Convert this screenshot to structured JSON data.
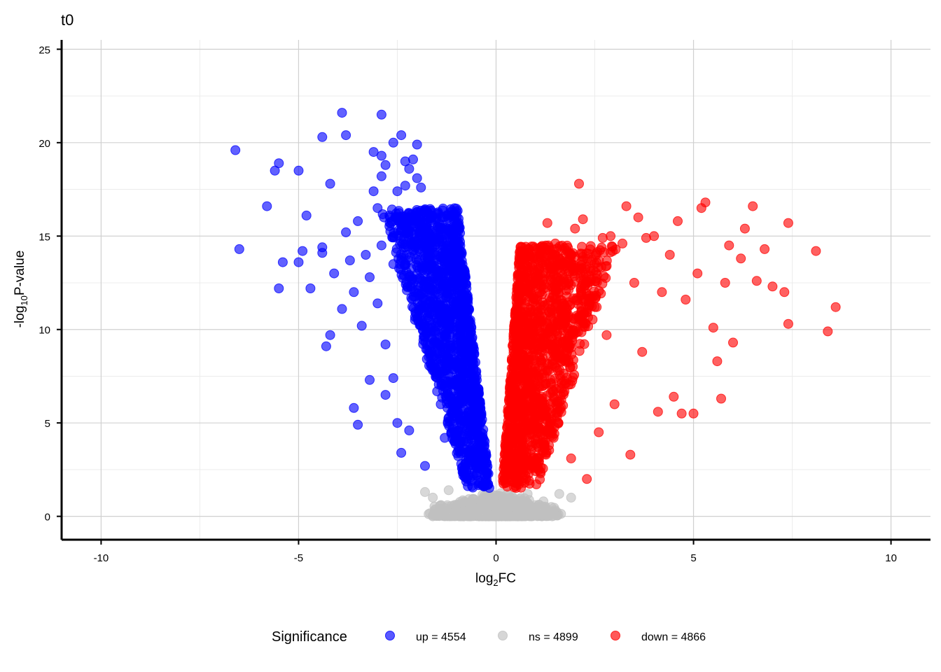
{
  "chart_data": {
    "type": "scatter",
    "title": "t0",
    "xlabel": "log",
    "xlabel_sub": "2",
    "xlabel_tail": "FC",
    "ylabel": "-log",
    "ylabel_sub": "10",
    "ylabel_tail": "P-value",
    "xlim": [
      -11,
      11
    ],
    "ylim": [
      -1.25,
      25.5
    ],
    "x_ticks": [
      -10,
      -5,
      0,
      5,
      10
    ],
    "x_tick_labels": [
      "-10",
      "-5",
      "0",
      "5",
      "10"
    ],
    "y_ticks": [
      0,
      5,
      10,
      15,
      20,
      25
    ],
    "y_tick_labels": [
      "0",
      "5",
      "10",
      "15",
      "20",
      "25"
    ],
    "grid": true,
    "legend_position": "bottom",
    "legend_title": "Significance",
    "series": [
      {
        "name": "up = 4554",
        "color": "#0000ff",
        "points": [
          [
            -6.6,
            19.6
          ],
          [
            -6.5,
            14.3
          ],
          [
            -5.8,
            16.6
          ],
          [
            -5.6,
            18.5
          ],
          [
            -5.5,
            18.9
          ],
          [
            -5.5,
            12.2
          ],
          [
            -5.4,
            13.6
          ],
          [
            -5.0,
            18.5
          ],
          [
            -5.0,
            13.6
          ],
          [
            -4.9,
            14.2
          ],
          [
            -4.8,
            16.1
          ],
          [
            -4.7,
            12.2
          ],
          [
            -4.4,
            20.3
          ],
          [
            -4.4,
            14.4
          ],
          [
            -4.4,
            14.1
          ],
          [
            -4.3,
            9.1
          ],
          [
            -4.2,
            17.8
          ],
          [
            -4.2,
            9.7
          ],
          [
            -4.1,
            13.0
          ],
          [
            -3.9,
            21.6
          ],
          [
            -3.9,
            11.1
          ],
          [
            -3.8,
            20.4
          ],
          [
            -3.8,
            15.2
          ],
          [
            -3.7,
            13.7
          ],
          [
            -3.6,
            12.0
          ],
          [
            -3.6,
            5.8
          ],
          [
            -3.5,
            15.8
          ],
          [
            -3.5,
            4.9
          ],
          [
            -3.4,
            10.2
          ],
          [
            -3.3,
            14.0
          ],
          [
            -3.2,
            12.8
          ],
          [
            -3.2,
            7.3
          ],
          [
            -3.1,
            19.5
          ],
          [
            -3.1,
            17.4
          ],
          [
            -3.0,
            16.5
          ],
          [
            -3.0,
            11.4
          ],
          [
            -2.9,
            21.5
          ],
          [
            -2.9,
            19.3
          ],
          [
            -2.9,
            18.2
          ],
          [
            -2.9,
            14.5
          ],
          [
            -2.8,
            18.8
          ],
          [
            -2.8,
            9.2
          ],
          [
            -2.8,
            6.5
          ],
          [
            -2.7,
            16.1
          ],
          [
            -2.6,
            20.0
          ],
          [
            -2.6,
            13.5
          ],
          [
            -2.6,
            7.4
          ],
          [
            -2.5,
            17.4
          ],
          [
            -2.5,
            5.0
          ],
          [
            -2.4,
            20.4
          ],
          [
            -2.4,
            15.6
          ],
          [
            -2.4,
            3.4
          ],
          [
            -2.3,
            19.0
          ],
          [
            -2.3,
            17.7
          ],
          [
            -2.2,
            18.6
          ],
          [
            -2.2,
            12.8
          ],
          [
            -2.2,
            4.6
          ],
          [
            -2.1,
            19.1
          ],
          [
            -2.1,
            15.9
          ],
          [
            -2.0,
            19.9
          ],
          [
            -2.0,
            18.1
          ],
          [
            -2.0,
            16.3
          ],
          [
            -1.9,
            17.6
          ],
          [
            -1.9,
            11.9
          ],
          [
            -1.8,
            2.7
          ],
          [
            -1.7,
            15.0
          ],
          [
            -1.7,
            10.5
          ],
          [
            -1.6,
            14.8
          ],
          [
            -1.5,
            13.2
          ],
          [
            -1.5,
            8.8
          ],
          [
            -1.4,
            12.3
          ],
          [
            -1.4,
            6.0
          ],
          [
            -1.3,
            14.1
          ],
          [
            -1.3,
            4.2
          ],
          [
            -1.2,
            10.4
          ],
          [
            -1.1,
            8.1
          ],
          [
            -1.0,
            12.5
          ],
          [
            -1.0,
            6.3
          ],
          [
            -0.9,
            10.0
          ],
          [
            -0.9,
            4.0
          ],
          [
            -0.8,
            7.6
          ],
          [
            -0.7,
            5.6
          ],
          [
            -0.6,
            3.0
          ],
          [
            -0.5,
            2.2
          ],
          [
            -0.3,
            1.6
          ]
        ],
        "cloud": {
          "x_min": -3.0,
          "x_max": -0.05,
          "y_min": 1.5,
          "y_max": 16.5,
          "density": 4554
        }
      },
      {
        "name": "ns = 4899",
        "color": "#c0c0c0",
        "points": [
          [
            -1.8,
            1.3
          ],
          [
            -1.6,
            1.0
          ],
          [
            -1.4,
            0.6
          ],
          [
            -1.2,
            1.4
          ],
          [
            -1.0,
            0.3
          ],
          [
            -0.8,
            0.8
          ],
          [
            -0.6,
            0.1
          ],
          [
            -0.4,
            0.5
          ],
          [
            -0.2,
            0.0
          ],
          [
            0.0,
            0.2
          ],
          [
            0.2,
            0.4
          ],
          [
            0.4,
            0.9
          ],
          [
            0.6,
            0.3
          ],
          [
            0.8,
            1.2
          ],
          [
            1.0,
            0.6
          ],
          [
            1.2,
            0.8
          ],
          [
            1.4,
            0.5
          ],
          [
            1.6,
            1.2
          ],
          [
            1.9,
            1.0
          ]
        ],
        "cloud": {
          "x_min": -1.9,
          "x_max": 1.9,
          "y_min": 0.0,
          "y_max": 1.4,
          "density": 4899
        }
      },
      {
        "name": "down = 4866",
        "color": "#ff0000",
        "points": [
          [
            0.5,
            2.0
          ],
          [
            0.7,
            3.5
          ],
          [
            0.9,
            5.6
          ],
          [
            1.1,
            8.0
          ],
          [
            1.2,
            12.7
          ],
          [
            1.3,
            15.7
          ],
          [
            1.4,
            10.6
          ],
          [
            1.5,
            14.6
          ],
          [
            1.6,
            13.8
          ],
          [
            1.7,
            9.0
          ],
          [
            1.8,
            14.2
          ],
          [
            1.9,
            3.1
          ],
          [
            2.0,
            15.4
          ],
          [
            2.1,
            17.8
          ],
          [
            2.2,
            15.9
          ],
          [
            2.3,
            2.0
          ],
          [
            2.4,
            13.6
          ],
          [
            2.5,
            11.2
          ],
          [
            2.6,
            4.5
          ],
          [
            2.7,
            14.9
          ],
          [
            2.8,
            9.7
          ],
          [
            2.9,
            15.0
          ],
          [
            3.0,
            6.0
          ],
          [
            3.2,
            14.6
          ],
          [
            3.3,
            16.6
          ],
          [
            3.4,
            3.3
          ],
          [
            3.5,
            12.5
          ],
          [
            3.6,
            16.0
          ],
          [
            3.7,
            8.8
          ],
          [
            3.8,
            14.9
          ],
          [
            4.0,
            15.0
          ],
          [
            4.1,
            5.6
          ],
          [
            4.2,
            12.0
          ],
          [
            4.4,
            14.0
          ],
          [
            4.5,
            6.4
          ],
          [
            4.6,
            15.8
          ],
          [
            4.7,
            5.5
          ],
          [
            4.8,
            11.6
          ],
          [
            5.0,
            5.5
          ],
          [
            5.1,
            13.0
          ],
          [
            5.2,
            16.5
          ],
          [
            5.3,
            16.8
          ],
          [
            5.5,
            10.1
          ],
          [
            5.6,
            8.3
          ],
          [
            5.7,
            6.3
          ],
          [
            5.8,
            12.5
          ],
          [
            5.9,
            14.5
          ],
          [
            6.0,
            9.3
          ],
          [
            6.2,
            13.8
          ],
          [
            6.3,
            15.4
          ],
          [
            6.5,
            16.6
          ],
          [
            6.6,
            12.6
          ],
          [
            6.8,
            14.3
          ],
          [
            7.0,
            12.3
          ],
          [
            7.3,
            12.0
          ],
          [
            7.4,
            15.7
          ],
          [
            7.4,
            10.3
          ],
          [
            8.1,
            14.2
          ],
          [
            8.4,
            9.9
          ],
          [
            8.6,
            11.2
          ]
        ],
        "cloud": {
          "x_min": 0.05,
          "x_max": 3.5,
          "y_min": 1.5,
          "y_max": 14.5,
          "density": 4866
        }
      }
    ]
  }
}
